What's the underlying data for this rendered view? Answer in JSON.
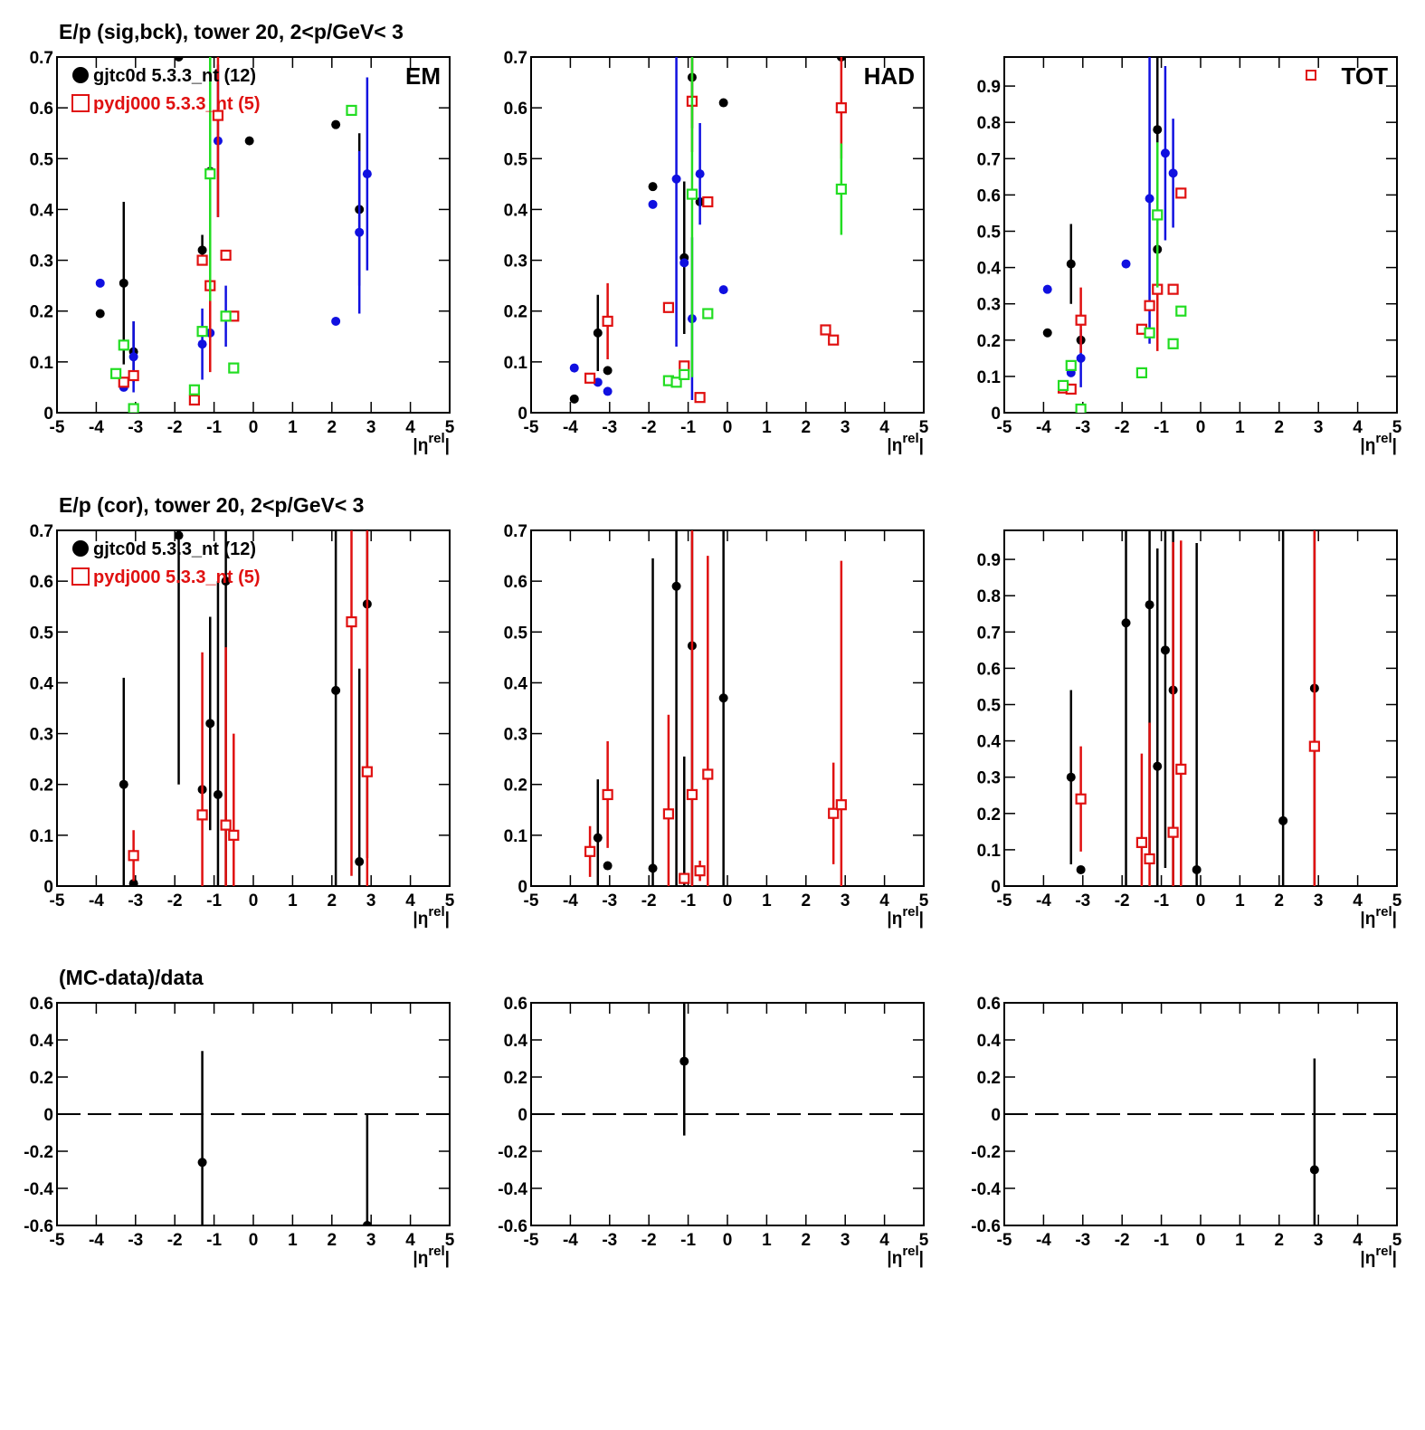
{
  "chart_data": [
    {
      "type": "scatter",
      "title": "E/p (sig,bck), tower 20,  2<p/GeV< 3",
      "annotation": "EM",
      "x_label": [
        "|η",
        "rel",
        "|"
      ],
      "xlim": [
        -5,
        5
      ],
      "ylim": [
        0,
        0.7
      ],
      "xticks": [
        -5,
        -4,
        -3,
        -2,
        -1,
        0,
        1,
        2,
        3,
        4,
        5
      ],
      "yticks": [
        0,
        0.1,
        0.2,
        0.3,
        0.4,
        0.5,
        0.6,
        0.7
      ],
      "series": [
        {
          "name": "gjtc0d 5.3.3_nt (12)",
          "color": "#000000",
          "marker": "circle",
          "x": [
            -3.9,
            -3.3,
            -3.05,
            -1.9,
            -1.3,
            -1.1,
            -0.1,
            2.1,
            2.7
          ],
          "values": [
            0.195,
            0.255,
            0.12,
            0.7,
            0.32,
            0.475,
            0.535,
            0.567,
            0.4
          ],
          "errors": [
            null,
            0.16,
            0.06,
            null,
            0.03,
            null,
            null,
            null,
            0.15
          ]
        },
        {
          "color": "#1010e0",
          "marker": "circle",
          "x": [
            -3.9,
            -3.3,
            -3.05,
            -1.3,
            -1.1,
            -0.9,
            -0.7,
            2.1,
            2.7,
            2.9
          ],
          "values": [
            0.255,
            0.05,
            0.11,
            0.135,
            0.157,
            0.535,
            0.19,
            0.18,
            0.355,
            0.47
          ],
          "errors": [
            null,
            null,
            0.07,
            0.07,
            null,
            0.15,
            0.06,
            null,
            0.16,
            0.19
          ]
        },
        {
          "name": "pydj000 5.3.3_nt (5)",
          "color": "#e01010",
          "marker": "square",
          "x": [
            -3.3,
            -3.05,
            -1.5,
            -1.3,
            -1.1,
            -0.9,
            -0.7,
            -0.5
          ],
          "values": [
            0.06,
            0.073,
            0.025,
            0.3,
            0.25,
            0.585,
            0.31,
            0.19
          ],
          "errors": [
            null,
            null,
            null,
            null,
            0.17,
            0.2,
            null,
            null
          ]
        },
        {
          "color": "#22dd22",
          "marker": "square",
          "x": [
            -3.5,
            -3.3,
            -3.05,
            -1.5,
            -1.3,
            -1.1,
            -0.7,
            -0.5,
            2.5
          ],
          "values": [
            0.077,
            0.133,
            0.008,
            0.045,
            0.16,
            0.47,
            0.19,
            0.088,
            0.595
          ],
          "errors": [
            null,
            null,
            null,
            null,
            null,
            0.25,
            null,
            null,
            null
          ]
        }
      ]
    },
    {
      "type": "scatter",
      "annotation": "HAD",
      "x_label": [
        "|η",
        "rel",
        "|"
      ],
      "xlim": [
        -5,
        5
      ],
      "ylim": [
        0,
        0.7
      ],
      "xticks": [
        -5,
        -4,
        -3,
        -2,
        -1,
        0,
        1,
        2,
        3,
        4,
        5
      ],
      "yticks": [
        0,
        0.1,
        0.2,
        0.3,
        0.4,
        0.5,
        0.6,
        0.7
      ],
      "series": [
        {
          "color": "#000000",
          "marker": "circle",
          "x": [
            -3.9,
            -3.3,
            -3.05,
            -1.9,
            -1.1,
            -0.9,
            -0.7,
            -0.1,
            2.9
          ],
          "values": [
            0.027,
            0.157,
            0.083,
            0.445,
            0.305,
            0.66,
            0.415,
            0.61,
            0.7
          ],
          "errors": [
            null,
            0.075,
            null,
            null,
            0.15,
            0.1,
            null,
            null,
            null
          ]
        },
        {
          "color": "#1010e0",
          "marker": "circle",
          "x": [
            -3.9,
            -3.3,
            -3.05,
            -1.9,
            -1.3,
            -1.1,
            -0.9,
            -0.7,
            -0.1
          ],
          "values": [
            0.088,
            0.06,
            0.042,
            0.41,
            0.46,
            0.295,
            0.185,
            0.47,
            0.242
          ],
          "errors": [
            null,
            null,
            null,
            null,
            0.33,
            null,
            0.16,
            0.1,
            null
          ]
        },
        {
          "color": "#e01010",
          "marker": "square",
          "x": [
            -3.5,
            -3.05,
            -1.5,
            -1.1,
            -0.9,
            -0.7,
            -0.5,
            2.5,
            2.7,
            2.9
          ],
          "values": [
            0.068,
            0.18,
            0.207,
            0.092,
            0.613,
            0.03,
            0.415,
            0.163,
            0.143,
            0.6
          ],
          "errors": [
            null,
            0.075,
            null,
            null,
            0.1,
            null,
            null,
            null,
            null,
            0.1
          ]
        },
        {
          "color": "#22dd22",
          "marker": "square",
          "x": [
            -1.5,
            -1.3,
            -1.1,
            -0.9,
            -0.5,
            2.9
          ],
          "values": [
            0.063,
            0.06,
            0.075,
            0.43,
            0.195,
            0.44
          ],
          "errors": [
            null,
            null,
            null,
            0.36,
            null,
            0.09
          ]
        }
      ]
    },
    {
      "type": "scatter",
      "annotation": "TOT",
      "annotation_marker": {
        "shape": "square",
        "color": "#e01010"
      },
      "x_label": [
        "|η",
        "rel",
        "|"
      ],
      "xlim": [
        -5,
        5
      ],
      "ylim": [
        0,
        0.98
      ],
      "xticks": [
        -5,
        -4,
        -3,
        -2,
        -1,
        0,
        1,
        2,
        3,
        4,
        5
      ],
      "yticks": [
        0,
        0.1,
        0.2,
        0.3,
        0.4,
        0.5,
        0.6,
        0.7,
        0.8,
        0.9
      ],
      "series": [
        {
          "color": "#000000",
          "marker": "circle",
          "x": [
            -3.9,
            -3.3,
            -3.05,
            -1.1,
            -1.1
          ],
          "values": [
            0.22,
            0.41,
            0.2,
            0.78,
            0.45
          ],
          "errors": [
            null,
            0.11,
            null,
            0.2,
            null
          ]
        },
        {
          "color": "#1010e0",
          "marker": "circle",
          "x": [
            -3.9,
            -3.3,
            -3.05,
            -1.9,
            -1.3,
            -0.9,
            -0.7
          ],
          "values": [
            0.34,
            0.11,
            0.15,
            0.41,
            0.59,
            0.715,
            0.66
          ],
          "errors": [
            null,
            null,
            0.08,
            null,
            0.4,
            0.24,
            0.15
          ]
        },
        {
          "color": "#e01010",
          "marker": "square",
          "x": [
            -3.5,
            -3.3,
            -3.05,
            -1.5,
            -1.3,
            -1.1,
            -0.7,
            -0.5
          ],
          "values": [
            0.068,
            0.065,
            0.255,
            0.23,
            0.295,
            0.34,
            0.34,
            0.605
          ],
          "errors": [
            null,
            null,
            0.09,
            null,
            null,
            0.17,
            null,
            null
          ]
        },
        {
          "color": "#22dd22",
          "marker": "square",
          "x": [
            -3.5,
            -3.3,
            -3.05,
            -1.5,
            -1.3,
            -1.1,
            -0.7,
            -0.5
          ],
          "values": [
            0.075,
            0.13,
            0.01,
            0.11,
            0.22,
            0.545,
            0.19,
            0.28
          ],
          "errors": [
            null,
            null,
            null,
            null,
            null,
            0.2,
            null,
            null
          ]
        }
      ]
    },
    {
      "type": "scatter",
      "title": "E/p (cor), tower 20,  2<p/GeV< 3",
      "x_label": [
        "|η",
        "rel",
        "|"
      ],
      "xlim": [
        -5,
        5
      ],
      "ylim": [
        0,
        0.7
      ],
      "xticks": [
        -5,
        -4,
        -3,
        -2,
        -1,
        0,
        1,
        2,
        3,
        4,
        5
      ],
      "yticks": [
        0,
        0.1,
        0.2,
        0.3,
        0.4,
        0.5,
        0.6,
        0.7
      ],
      "series": [
        {
          "name": "gjtc0d 5.3.3_nt (12)",
          "color": "#000000",
          "marker": "circle",
          "x": [
            -3.3,
            -3.05,
            -1.9,
            -1.3,
            -1.1,
            -0.9,
            -0.7,
            2.1,
            2.7,
            2.9
          ],
          "values": [
            0.2,
            0.005,
            0.69,
            0.19,
            0.32,
            0.18,
            0.6,
            0.385,
            0.048,
            0.555
          ],
          "errors": [
            0.21,
            null,
            0.49,
            null,
            0.21,
            0.42,
            0.6,
            0.4,
            0.38,
            0.5
          ]
        },
        {
          "name": "pydj000 5.3.3_nt (5)",
          "color": "#e01010",
          "marker": "square",
          "x": [
            -3.05,
            -1.3,
            -0.7,
            -0.5,
            2.5,
            2.9
          ],
          "values": [
            0.06,
            0.14,
            0.12,
            0.1,
            0.52,
            0.225
          ],
          "errors": [
            0.05,
            0.32,
            0.35,
            0.2,
            0.5,
            0.5
          ]
        }
      ]
    },
    {
      "type": "scatter",
      "x_label": [
        "|η",
        "rel",
        "|"
      ],
      "xlim": [
        -5,
        5
      ],
      "ylim": [
        0,
        0.7
      ],
      "xticks": [
        -5,
        -4,
        -3,
        -2,
        -1,
        0,
        1,
        2,
        3,
        4,
        5
      ],
      "yticks": [
        0,
        0.1,
        0.2,
        0.3,
        0.4,
        0.5,
        0.6,
        0.7
      ],
      "series": [
        {
          "color": "#000000",
          "marker": "circle",
          "x": [
            -3.3,
            -3.05,
            -1.9,
            -1.3,
            -1.1,
            -0.9,
            -0.1
          ],
          "values": [
            0.095,
            0.04,
            0.035,
            0.59,
            0.015,
            0.473,
            0.37
          ],
          "errors": [
            0.115,
            null,
            0.61,
            0.6,
            0.24,
            0.55,
            0.6
          ]
        },
        {
          "color": "#e01010",
          "marker": "square",
          "x": [
            -3.5,
            -3.05,
            -1.5,
            -1.1,
            -0.9,
            -0.7,
            -0.5,
            2.7,
            2.9
          ],
          "values": [
            0.068,
            0.18,
            0.142,
            0.015,
            0.18,
            0.03,
            0.22,
            0.143,
            0.16
          ],
          "errors": [
            0.05,
            0.105,
            0.195,
            null,
            0.6,
            0.02,
            0.43,
            0.1,
            0.48
          ]
        }
      ]
    },
    {
      "type": "scatter",
      "x_label": [
        "|η",
        "rel",
        "|"
      ],
      "xlim": [
        -5,
        5
      ],
      "ylim": [
        0,
        0.98
      ],
      "xticks": [
        -5,
        -4,
        -3,
        -2,
        -1,
        0,
        1,
        2,
        3,
        4,
        5
      ],
      "yticks": [
        0,
        0.1,
        0.2,
        0.3,
        0.4,
        0.5,
        0.6,
        0.7,
        0.8,
        0.9
      ],
      "series": [
        {
          "color": "#000000",
          "marker": "circle",
          "x": [
            -3.3,
            -3.05,
            -1.9,
            -1.3,
            -1.1,
            -0.9,
            -0.7,
            -0.1,
            2.1,
            2.9
          ],
          "values": [
            0.3,
            0.045,
            0.725,
            0.775,
            0.33,
            0.65,
            0.54,
            0.045,
            0.18,
            0.545
          ],
          "errors": [
            0.24,
            null,
            0.73,
            0.7,
            0.6,
            0.6,
            0.55,
            0.9,
            0.8,
            0.55
          ]
        },
        {
          "color": "#e01010",
          "marker": "square",
          "x": [
            -3.05,
            -1.5,
            -1.3,
            -0.7,
            -0.5,
            2.9
          ],
          "values": [
            0.24,
            0.12,
            0.075,
            0.148,
            0.322,
            0.385
          ],
          "errors": [
            0.145,
            0.245,
            0.375,
            0.8,
            0.63,
            0.6
          ]
        }
      ]
    },
    {
      "type": "scatter",
      "title": "(MC-data)/data",
      "x_label": [
        "|η",
        "rel",
        "|"
      ],
      "ref_line": 0,
      "xlim": [
        -5,
        5
      ],
      "ylim": [
        -0.6,
        0.6
      ],
      "xticks": [
        -5,
        -4,
        -3,
        -2,
        -1,
        0,
        1,
        2,
        3,
        4,
        5
      ],
      "yticks": [
        -0.6,
        -0.4,
        -0.2,
        0,
        0.2,
        0.4,
        0.6
      ],
      "series": [
        {
          "color": "#000000",
          "marker": "circle",
          "x": [
            -1.3,
            2.9
          ],
          "values": [
            -0.26,
            -0.6
          ],
          "errors": [
            0.6,
            0.6
          ]
        }
      ]
    },
    {
      "type": "scatter",
      "x_label": [
        "|η",
        "rel",
        "|"
      ],
      "ref_line": 0,
      "xlim": [
        -5,
        5
      ],
      "ylim": [
        -0.6,
        0.6
      ],
      "xticks": [
        -5,
        -4,
        -3,
        -2,
        -1,
        0,
        1,
        2,
        3,
        4,
        5
      ],
      "yticks": [
        -0.6,
        -0.4,
        -0.2,
        0,
        0.2,
        0.4,
        0.6
      ],
      "series": [
        {
          "color": "#000000",
          "marker": "circle",
          "x": [
            -1.1
          ],
          "values": [
            0.285
          ],
          "errors": [
            0.4
          ]
        }
      ]
    },
    {
      "type": "scatter",
      "x_label": [
        "|η",
        "rel",
        "|"
      ],
      "ref_line": 0,
      "xlim": [
        -5,
        5
      ],
      "ylim": [
        -0.6,
        0.6
      ],
      "xticks": [
        -5,
        -4,
        -3,
        -2,
        -1,
        0,
        1,
        2,
        3,
        4,
        5
      ],
      "yticks": [
        -0.6,
        -0.4,
        -0.2,
        0,
        0.2,
        0.4,
        0.6
      ],
      "series": [
        {
          "color": "#000000",
          "marker": "circle",
          "x": [
            2.9
          ],
          "values": [
            -0.3
          ],
          "errors": [
            0.6
          ]
        }
      ]
    }
  ]
}
